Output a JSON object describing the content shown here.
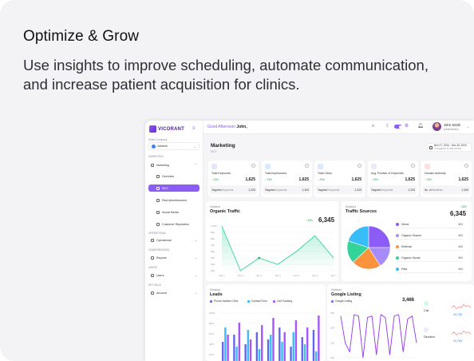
{
  "hero": {
    "headline": "Optimize & Grow",
    "subline": "Use insights to improve scheduling, automate communication, and increase patient acquisition for clinics."
  },
  "colors": {
    "brand": "#8b5cf6",
    "positive": "#16a34a",
    "line": "#34d399",
    "blue": "#3b82f6",
    "card_bg": "#f3f3f6"
  },
  "sidebar": {
    "logo": "VICORANT",
    "company_label": "Select Company",
    "company": "Jabbers",
    "section_marketing": "MARKETING",
    "items": [
      {
        "label": "Marketing",
        "icon": "megaphone-icon"
      },
      {
        "label": "Overview",
        "icon": "grid-icon"
      },
      {
        "label": "SEO",
        "icon": "chart-icon"
      },
      {
        "label": "Paid Advertisement",
        "icon": "ad-icon"
      },
      {
        "label": "Social Media",
        "icon": "share-icon"
      },
      {
        "label": "Customer Reputation",
        "icon": "star-icon"
      }
    ],
    "section_operational": "OPERATIONAL",
    "operational": "Operational",
    "section_leaderboards": "LEADERBOARDS",
    "reports": "Reports",
    "section_users": "USERS",
    "users": "Users",
    "section_settings": "SETTINGS",
    "account": "Account"
  },
  "topbar": {
    "greeting_prefix": "Good Afternoon",
    "greeting_name": "John,",
    "user_name": "John Smith",
    "user_role": "Administrator"
  },
  "page": {
    "title": "Marketing",
    "subtitle": "SEO",
    "date_range": "Nov 27, 2024 - Dec 26, 2024",
    "date_sub": "Compared to last period"
  },
  "kpis": [
    {
      "name": "Total Keywords",
      "pct": "↑ 23%",
      "value": "1,625",
      "foot_label": "Targeted",
      "foot_label2": "Keywords",
      "foot_value": "2,325",
      "badge": "#e0e7ff"
    },
    {
      "name": "Total Impressions",
      "pct": "↑ 23%",
      "value": "1,625",
      "foot_label": "Targeted",
      "foot_label2": "Keywords",
      "foot_value": "2,325",
      "badge": "#dbeafe"
    },
    {
      "name": "Total Clicks",
      "pct": "↑ 23%",
      "value": "1,625",
      "foot_label": "Targeted",
      "foot_label2": "Keywords",
      "foot_value": "2,325",
      "badge": "#dbeafe"
    },
    {
      "name": "Avg. Position of Keywords",
      "pct": "↑ 23%",
      "value": "1,625",
      "foot_label": "Targeted",
      "foot_label2": "Keywords",
      "foot_value": "2,325",
      "badge": "#ede9fe"
    },
    {
      "name": "Domain Authority",
      "pct": "↑ 23%",
      "value": "1,625",
      "foot_label": "No. of",
      "foot_label2": "Backlinks",
      "foot_value": "2,325",
      "badge": "#fee2e2"
    }
  ],
  "organic": {
    "eyebrow": "Statistics",
    "title": "Organic Traffic",
    "pct": "↑ 34%",
    "value": "6,345",
    "y_ticks": [
      "1,000",
      "900",
      "800",
      "700",
      "600",
      "500",
      "400",
      "300"
    ],
    "x_ticks": [
      "Jan 1",
      "Jan 2",
      "Jan 3",
      "Jan 4",
      "Jan 5",
      "Jan 6",
      "Jan 7"
    ]
  },
  "traffic_sources": {
    "eyebrow": "Statistics",
    "title": "Traffic Sources",
    "pct": "↑ 34%",
    "value": "6,345",
    "items": [
      {
        "label": "Direct",
        "value": "500",
        "color": "#8b5cf6"
      },
      {
        "label": "Organic Search",
        "value": "500",
        "color": "#a78bfa"
      },
      {
        "label": "Referral",
        "value": "500",
        "color": "#fb923c"
      },
      {
        "label": "Organic Social",
        "value": "500",
        "color": "#34d399"
      },
      {
        "label": "Paid",
        "value": "500",
        "color": "#38bdf8"
      }
    ]
  },
  "leads": {
    "eyebrow": "Statistics",
    "title": "Leads",
    "legend": [
      {
        "label": "Phone Number Click",
        "color": "#6366f1"
      },
      {
        "label": "Contact Form",
        "color": "#38bdf8"
      },
      {
        "label": "Call Tracking",
        "color": "#a855f7"
      }
    ],
    "y_ticks": [
      "100%",
      "80%",
      "60%",
      "40%",
      "20%"
    ]
  },
  "google_listing": {
    "eyebrow": "Statistics",
    "title": "Google Listing",
    "legend": "Google Listing",
    "value": "3,466",
    "y_ticks": [
      "250",
      "200",
      "150",
      "100"
    ],
    "metrics": [
      {
        "label": "Call",
        "value": "34,783",
        "icon": "phone-icon",
        "color": "#d1fae5"
      },
      {
        "label": "Direction",
        "value": "34,783",
        "icon": "direction-icon",
        "color": "#ede9fe"
      }
    ]
  },
  "chart_data": [
    {
      "type": "line",
      "title": "Organic Traffic",
      "categories": [
        "Jan 1",
        "Jan 2",
        "Jan 3",
        "Jan 4",
        "Jan 5",
        "Jan 6",
        "Jan 7"
      ],
      "values": [
        1000,
        300,
        500,
        400,
        600,
        850,
        500
      ],
      "ylim": [
        300,
        1000
      ]
    },
    {
      "type": "pie",
      "title": "Traffic Sources",
      "categories": [
        "Direct",
        "Organic Search",
        "Referral",
        "Organic Social",
        "Paid"
      ],
      "values": [
        500,
        500,
        500,
        500,
        500
      ]
    },
    {
      "type": "bar",
      "title": "Leads",
      "ylim": [
        0,
        100
      ],
      "series": [
        {
          "name": "Phone Number Click",
          "values": [
            40,
            55,
            35,
            60,
            45,
            70,
            30,
            50,
            65
          ]
        },
        {
          "name": "Contact Form",
          "values": [
            70,
            30,
            65,
            25,
            55,
            40,
            60,
            35,
            20
          ]
        },
        {
          "name": "Call Tracking",
          "values": [
            55,
            80,
            45,
            75,
            90,
            60,
            85,
            70,
            95
          ]
        }
      ]
    },
    {
      "type": "line",
      "title": "Google Listing",
      "values": [
        240,
        150,
        120,
        245,
        240,
        100,
        235,
        240,
        110,
        245,
        235,
        110,
        240,
        245,
        120,
        230,
        240,
        150
      ],
      "ylim": [
        100,
        250
      ]
    }
  ]
}
